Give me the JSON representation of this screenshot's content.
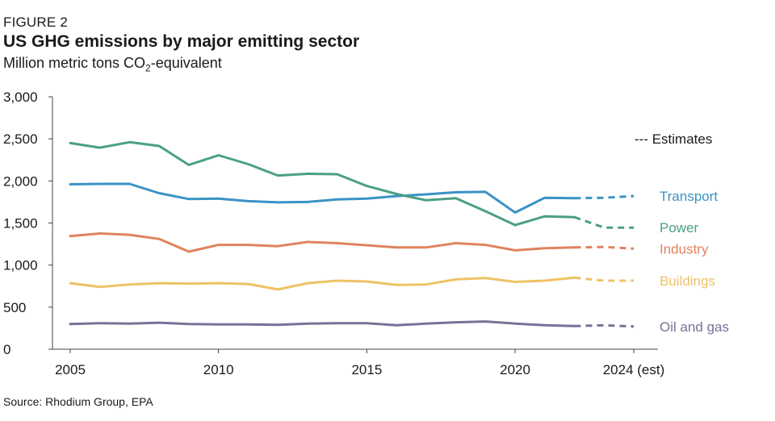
{
  "figure_label": "FIGURE 2",
  "title": "US GHG emissions by major emitting sector",
  "subtitle_main": "Million metric tons CO",
  "subtitle_sub": "2",
  "subtitle_rest": "-equivalent",
  "source": "Source: Rhodium Group, EPA",
  "legend_estimates": "--- Estimates",
  "chart_data": {
    "type": "line",
    "title": "US GHG emissions by major emitting sector",
    "ylabel": "Million metric tons CO2-equivalent",
    "xlabel": "",
    "ylim": [
      0,
      3000
    ],
    "xlim": [
      2005,
      2024
    ],
    "y_ticks": [
      0,
      500,
      1000,
      1500,
      2000,
      2500,
      3000
    ],
    "y_tick_labels": [
      "0",
      "500",
      "1,000",
      "1,500",
      "2,000",
      "2,500",
      "3,000"
    ],
    "x_ticks": [
      2005,
      2010,
      2015,
      2020,
      2024
    ],
    "x_tick_labels": [
      "2005",
      "2010",
      "2015",
      "2020",
      "2024 (est)"
    ],
    "x": [
      2005,
      2006,
      2007,
      2008,
      2009,
      2010,
      2011,
      2012,
      2013,
      2014,
      2015,
      2016,
      2017,
      2018,
      2019,
      2020,
      2021,
      2022,
      2023,
      2024
    ],
    "estimate_start": 2022,
    "series": [
      {
        "name": "Transport",
        "color": "#3a93c4",
        "values": [
          1960,
          1965,
          1965,
          1855,
          1785,
          1790,
          1760,
          1745,
          1750,
          1780,
          1790,
          1820,
          1840,
          1865,
          1870,
          1625,
          1800,
          1795,
          1800,
          1820
        ]
      },
      {
        "name": "Power",
        "color": "#4a9f85",
        "values": [
          2450,
          2395,
          2460,
          2415,
          2190,
          2305,
          2200,
          2065,
          2085,
          2080,
          1940,
          1845,
          1770,
          1795,
          1640,
          1475,
          1580,
          1570,
          1445,
          1445
        ]
      },
      {
        "name": "Industry",
        "color": "#e0835e",
        "values": [
          1345,
          1375,
          1360,
          1310,
          1160,
          1240,
          1240,
          1225,
          1275,
          1260,
          1235,
          1210,
          1210,
          1260,
          1240,
          1175,
          1200,
          1210,
          1215,
          1195
        ]
      },
      {
        "name": "Buildings",
        "color": "#efc265",
        "values": [
          785,
          740,
          770,
          785,
          780,
          785,
          775,
          710,
          785,
          815,
          805,
          765,
          770,
          830,
          845,
          800,
          815,
          850,
          815,
          815
        ]
      },
      {
        "name": "Oil and gas",
        "color": "#7a7197",
        "values": [
          300,
          310,
          305,
          315,
          300,
          295,
          295,
          290,
          305,
          310,
          310,
          285,
          305,
          320,
          330,
          305,
          285,
          275,
          285,
          270
        ]
      }
    ]
  }
}
